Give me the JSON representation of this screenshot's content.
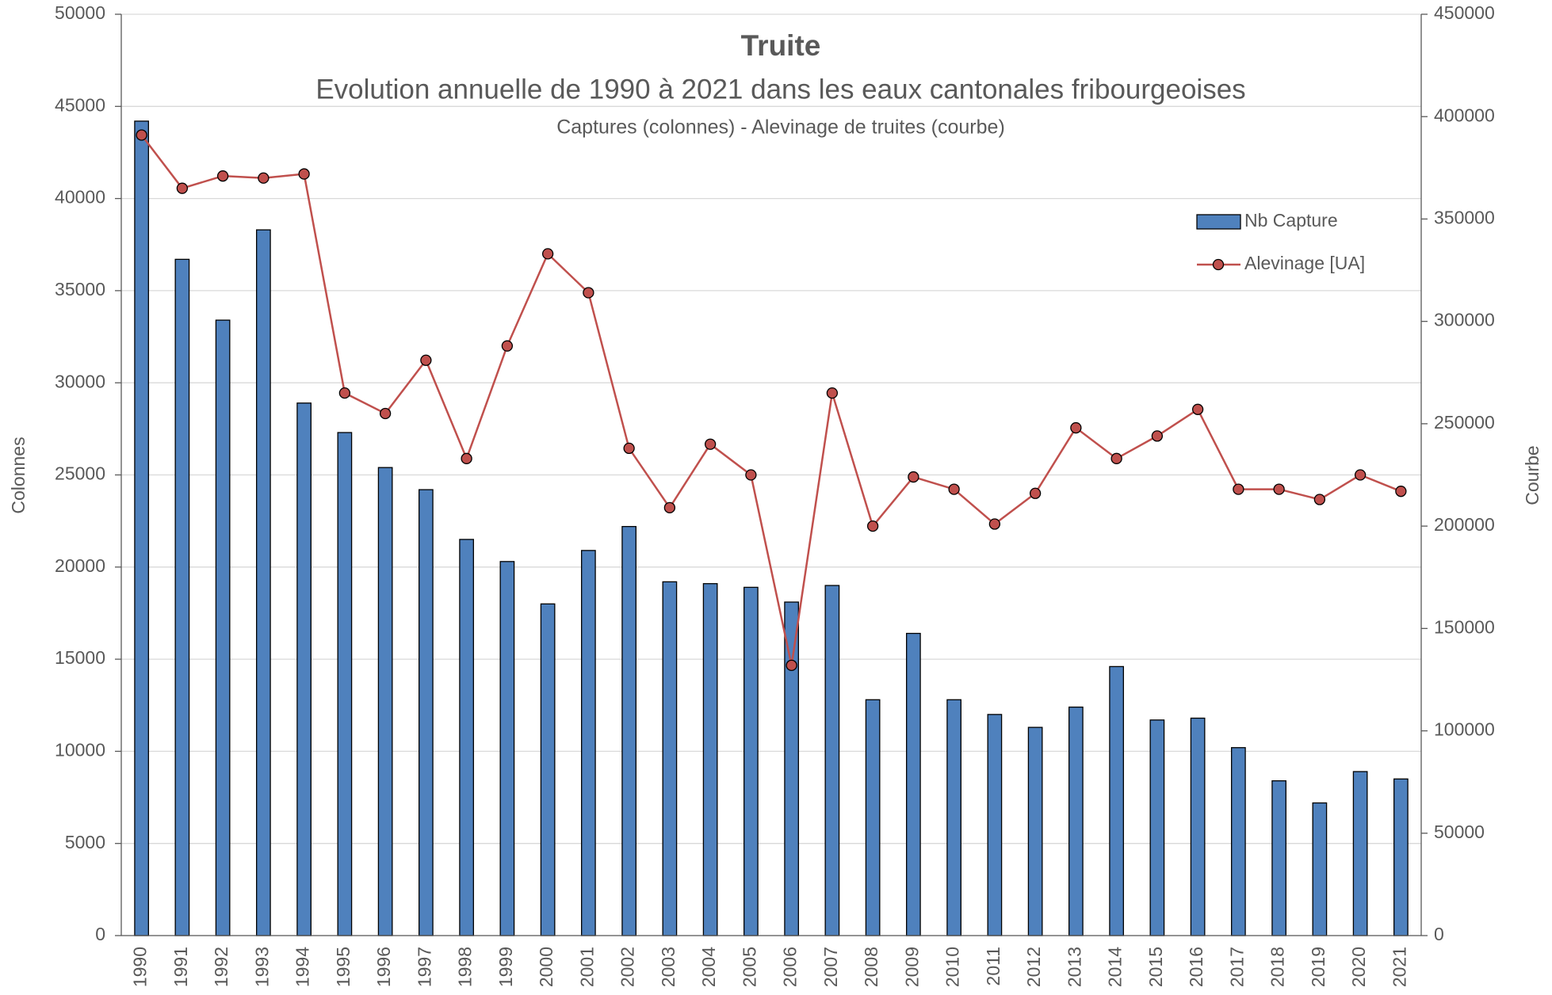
{
  "chart_data": {
    "type": "bar_line",
    "title": "Truite",
    "subtitle": "Evolution annuelle de 1990 à 2021 dans les eaux cantonales fribourgeoises",
    "note": "Captures (colonnes) - Alevinage de truites (courbe)",
    "y_label": "Colonnes",
    "y2_label": "Courbe",
    "categories": [
      "1990",
      "1991",
      "1992",
      "1993",
      "1994",
      "1995",
      "1996",
      "1997",
      "1998",
      "1999",
      "2000",
      "2001",
      "2002",
      "2003",
      "2004",
      "2005",
      "2006",
      "2007",
      "2008",
      "2009",
      "2010",
      "2011",
      "2012",
      "2013",
      "2014",
      "2015",
      "2016",
      "2017",
      "2018",
      "2019",
      "2020",
      "2021"
    ],
    "series": [
      {
        "name": "Nb Capture",
        "type": "bar",
        "color": "#4f81bd",
        "values": [
          44200,
          36700,
          33400,
          38300,
          28900,
          27300,
          25400,
          24200,
          21500,
          20300,
          18000,
          20900,
          22200,
          19200,
          19100,
          18900,
          18100,
          19000,
          12800,
          16400,
          12800,
          12000,
          11300,
          12400,
          14600,
          11700,
          11800,
          10200,
          8400,
          7200,
          8900,
          8500
        ]
      },
      {
        "name": "Alevinage [UA]",
        "type": "line",
        "axis": "y2",
        "color": "#c0504d",
        "values": [
          391000,
          365000,
          371000,
          370000,
          372000,
          265000,
          255000,
          281000,
          233000,
          288000,
          333000,
          314000,
          238000,
          209000,
          240000,
          225000,
          132000,
          265000,
          200000,
          224000,
          218000,
          201000,
          216000,
          248000,
          233000,
          244000,
          257000,
          218000,
          218000,
          213000,
          225000,
          217000
        ]
      }
    ],
    "ylim": [
      0,
      50000
    ],
    "yticks": [
      0,
      5000,
      10000,
      15000,
      20000,
      25000,
      30000,
      35000,
      40000,
      45000,
      50000
    ],
    "y2lim": [
      0,
      450000
    ],
    "y2ticks": [
      0,
      50000,
      100000,
      150000,
      200000,
      250000,
      300000,
      350000,
      400000,
      450000
    ],
    "grid": true,
    "legend": "upper right"
  }
}
